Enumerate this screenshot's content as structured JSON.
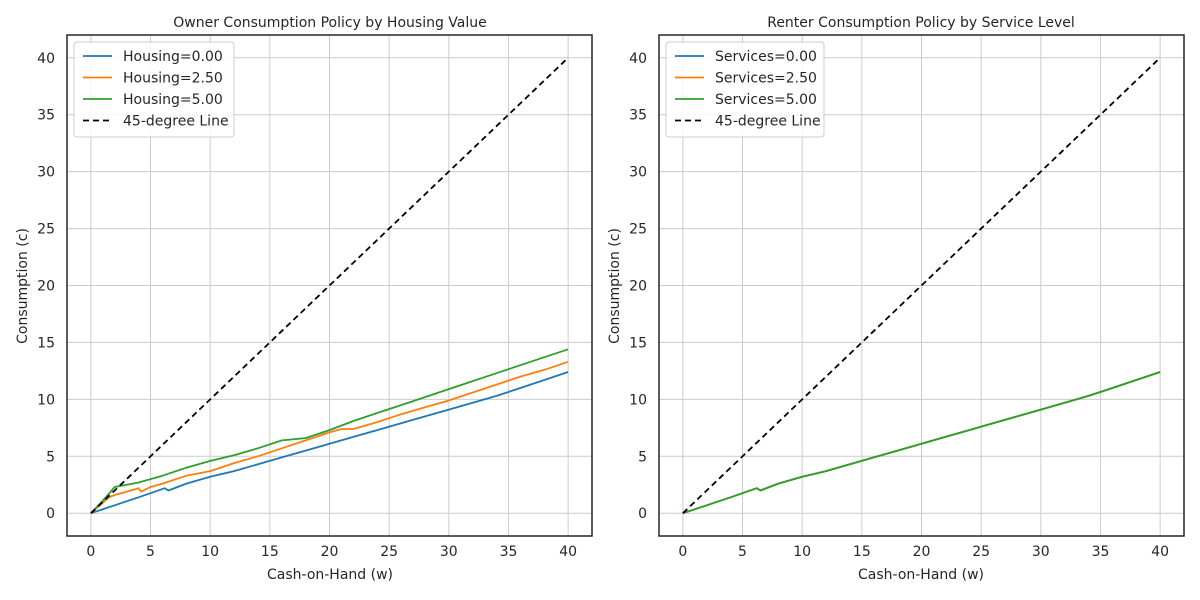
{
  "chart_data": [
    {
      "type": "line",
      "title": "Owner Consumption Policy by Housing Value",
      "xlabel": "Cash-on-Hand (w)",
      "ylabel": "Consumption (c)",
      "xlim": [
        -2,
        42
      ],
      "ylim": [
        -2,
        42
      ],
      "xticks": [
        0,
        5,
        10,
        15,
        20,
        25,
        30,
        35,
        40
      ],
      "yticks": [
        0,
        5,
        10,
        15,
        20,
        25,
        30,
        35,
        40
      ],
      "grid": true,
      "legend_position": "top-left",
      "series": [
        {
          "name": "Housing=0.00",
          "color": "#1f77b4",
          "dashed": false,
          "x": [
            0,
            2,
            4,
            6.2,
            6.5,
            8,
            10,
            12,
            14,
            16,
            18,
            20,
            22,
            24,
            26,
            28,
            30,
            32,
            34,
            36,
            38,
            40
          ],
          "y": [
            0,
            0.7,
            1.4,
            2.2,
            2.0,
            2.6,
            3.2,
            3.7,
            4.3,
            4.9,
            5.5,
            6.1,
            6.7,
            7.3,
            7.9,
            8.5,
            9.1,
            9.7,
            10.3,
            11.0,
            11.7,
            12.4
          ]
        },
        {
          "name": "Housing=2.50",
          "color": "#ff7f0e",
          "dashed": false,
          "x": [
            0,
            1.5,
            2,
            3,
            4,
            4.2,
            5,
            6,
            8,
            10,
            12,
            14,
            16,
            18,
            20,
            21,
            22,
            24,
            26,
            28,
            30,
            32,
            34,
            36,
            38,
            40
          ],
          "y": [
            0,
            1.4,
            1.6,
            1.9,
            2.2,
            1.9,
            2.3,
            2.6,
            3.3,
            3.7,
            4.4,
            5.0,
            5.7,
            6.4,
            7.1,
            7.4,
            7.4,
            8.0,
            8.7,
            9.3,
            9.9,
            10.6,
            11.3,
            12.0,
            12.6,
            13.3
          ]
        },
        {
          "name": "Housing=5.00",
          "color": "#2ca02c",
          "dashed": false,
          "x": [
            0,
            1,
            2,
            3,
            4,
            6,
            8,
            10,
            12,
            14,
            16,
            18,
            20,
            22,
            24,
            26,
            28,
            30,
            32,
            34,
            36,
            38,
            40
          ],
          "y": [
            0,
            1.1,
            2.3,
            2.5,
            2.7,
            3.3,
            4.0,
            4.6,
            5.1,
            5.7,
            6.4,
            6.6,
            7.3,
            8.1,
            8.8,
            9.5,
            10.2,
            10.9,
            11.6,
            12.3,
            13.0,
            13.7,
            14.4
          ]
        },
        {
          "name": "45-degree Line",
          "color": "#000000",
          "dashed": true,
          "x": [
            0,
            40
          ],
          "y": [
            0,
            40
          ]
        }
      ]
    },
    {
      "type": "line",
      "title": "Renter Consumption Policy by Service Level",
      "xlabel": "Cash-on-Hand (w)",
      "ylabel": "Consumption (c)",
      "xlim": [
        -2,
        42
      ],
      "ylim": [
        -2,
        42
      ],
      "xticks": [
        0,
        5,
        10,
        15,
        20,
        25,
        30,
        35,
        40
      ],
      "yticks": [
        0,
        5,
        10,
        15,
        20,
        25,
        30,
        35,
        40
      ],
      "grid": true,
      "legend_position": "top-left",
      "series": [
        {
          "name": "Services=0.00",
          "color": "#1f77b4",
          "dashed": false,
          "x": [
            0,
            2,
            4,
            6.2,
            6.5,
            8,
            10,
            12,
            14,
            16,
            18,
            20,
            22,
            24,
            26,
            28,
            30,
            32,
            34,
            36,
            38,
            40
          ],
          "y": [
            0,
            0.7,
            1.4,
            2.2,
            2.0,
            2.6,
            3.2,
            3.7,
            4.3,
            4.9,
            5.5,
            6.1,
            6.7,
            7.3,
            7.9,
            8.5,
            9.1,
            9.7,
            10.3,
            11.0,
            11.7,
            12.4
          ]
        },
        {
          "name": "Services=2.50",
          "color": "#ff7f0e",
          "dashed": false,
          "x": [
            0,
            2,
            4,
            6.2,
            6.5,
            8,
            10,
            12,
            14,
            16,
            18,
            20,
            22,
            24,
            26,
            28,
            30,
            32,
            34,
            36,
            38,
            40
          ],
          "y": [
            0,
            0.7,
            1.4,
            2.2,
            2.0,
            2.6,
            3.2,
            3.7,
            4.3,
            4.9,
            5.5,
            6.1,
            6.7,
            7.3,
            7.9,
            8.5,
            9.1,
            9.7,
            10.3,
            11.0,
            11.7,
            12.4
          ]
        },
        {
          "name": "Services=5.00",
          "color": "#2ca02c",
          "dashed": false,
          "x": [
            0,
            2,
            4,
            6.2,
            6.5,
            8,
            10,
            12,
            14,
            16,
            18,
            20,
            22,
            24,
            26,
            28,
            30,
            32,
            34,
            36,
            38,
            40
          ],
          "y": [
            0,
            0.7,
            1.4,
            2.2,
            2.0,
            2.6,
            3.2,
            3.7,
            4.3,
            4.9,
            5.5,
            6.1,
            6.7,
            7.3,
            7.9,
            8.5,
            9.1,
            9.7,
            10.3,
            11.0,
            11.7,
            12.4
          ]
        },
        {
          "name": "45-degree Line",
          "color": "#000000",
          "dashed": true,
          "x": [
            0,
            40
          ],
          "y": [
            0,
            40
          ]
        }
      ]
    }
  ]
}
